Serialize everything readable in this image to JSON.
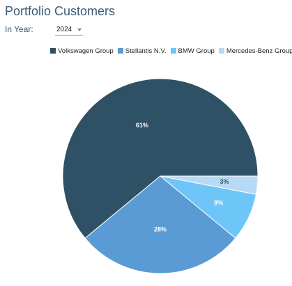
{
  "header": {
    "title": "Portfolio Customers",
    "year_label": "In Year:",
    "year_value": "2024"
  },
  "chart_data": {
    "type": "pie",
    "title": "Portfolio Customers",
    "legend_placement": "top",
    "categories": [
      "Volkswagen Group",
      "Stellantis N.V.",
      "BMW Group",
      "Mercedes-Benz Group"
    ],
    "values": [
      61,
      28,
      8,
      3
    ],
    "value_labels": [
      "61%",
      "28%",
      "8%",
      "3%"
    ],
    "colors": [
      "#2f5166",
      "#5b9bd5",
      "#6ec6f8",
      "#b7d9f4"
    ],
    "label_colors": [
      "#ffffff",
      "#ffffff",
      "#ffffff",
      "#3b5a74"
    ]
  }
}
